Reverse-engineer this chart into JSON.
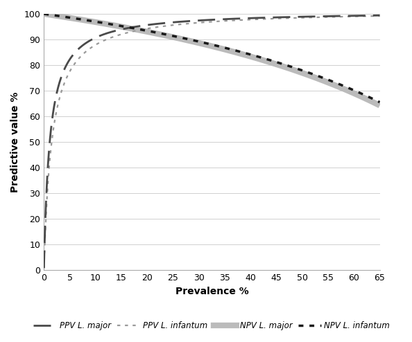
{
  "title": "",
  "xlabel": "Prevalence %",
  "ylabel": "Predictive value %",
  "xlim": [
    0,
    65
  ],
  "ylim": [
    0,
    100
  ],
  "xticks": [
    0,
    5,
    10,
    15,
    20,
    25,
    30,
    35,
    40,
    45,
    50,
    55,
    60,
    65
  ],
  "yticks": [
    0,
    10,
    20,
    30,
    40,
    50,
    60,
    70,
    80,
    90,
    100
  ],
  "sens_major": 0.703,
  "spec_major": 0.992,
  "sens_infantum": 0.72,
  "spec_infantum": 0.989,
  "legend_labels": [
    "PPV L. major",
    "PPV L. infantum",
    "NPV L. major",
    "NPV L. infantum"
  ],
  "ppv_major_color": "#4a4a4a",
  "ppv_infantum_color": "#999999",
  "npv_major_color": "#bbbbbb",
  "npv_infantum_color": "#1a1a1a",
  "figsize": [
    5.94,
    4.94
  ],
  "dpi": 100
}
